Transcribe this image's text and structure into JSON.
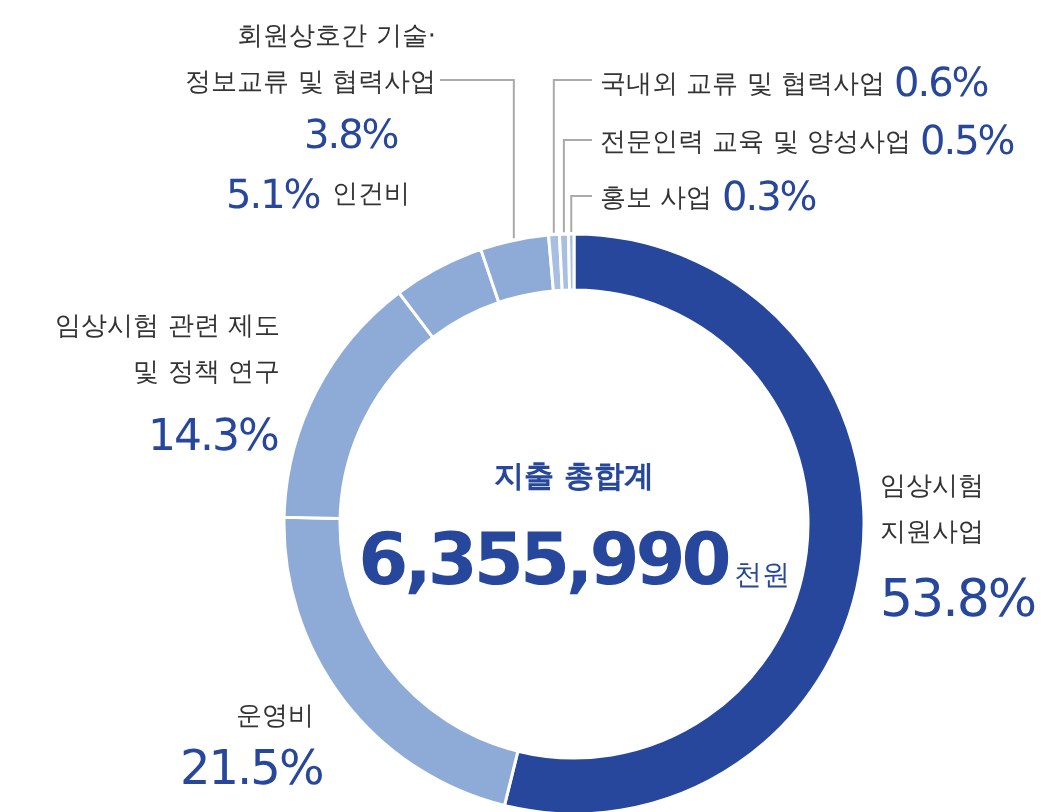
{
  "chart_data": {
    "type": "donut",
    "title": "지출 총합계",
    "annotations": [
      "6,355,990",
      "천원"
    ],
    "categories": [
      "임상시험 지원사업",
      "운영비",
      "임상시험 관련 제도 및 정책 연구",
      "인건비",
      "회원상호간 기술· 정보교류 및 협력사업",
      "국내외 교류 및 협력사업",
      "전문인력 교육 및 양성사업",
      "홍보 사업"
    ],
    "values": [
      53.8,
      21.5,
      14.3,
      5.1,
      3.8,
      0.6,
      0.5,
      0.3
    ],
    "colors": [
      "#27479c",
      "#8eaad6",
      "#8eaad6",
      "#8eaad6",
      "#8eaad6",
      "#a9bfe2",
      "#a9bfe2",
      "#a9bfe2"
    ],
    "value_labels": [
      "53.8%",
      "21.5%",
      "14.3%",
      "5.1%",
      "3.8%",
      "0.6%",
      "0.5%",
      "0.3%"
    ]
  }
}
